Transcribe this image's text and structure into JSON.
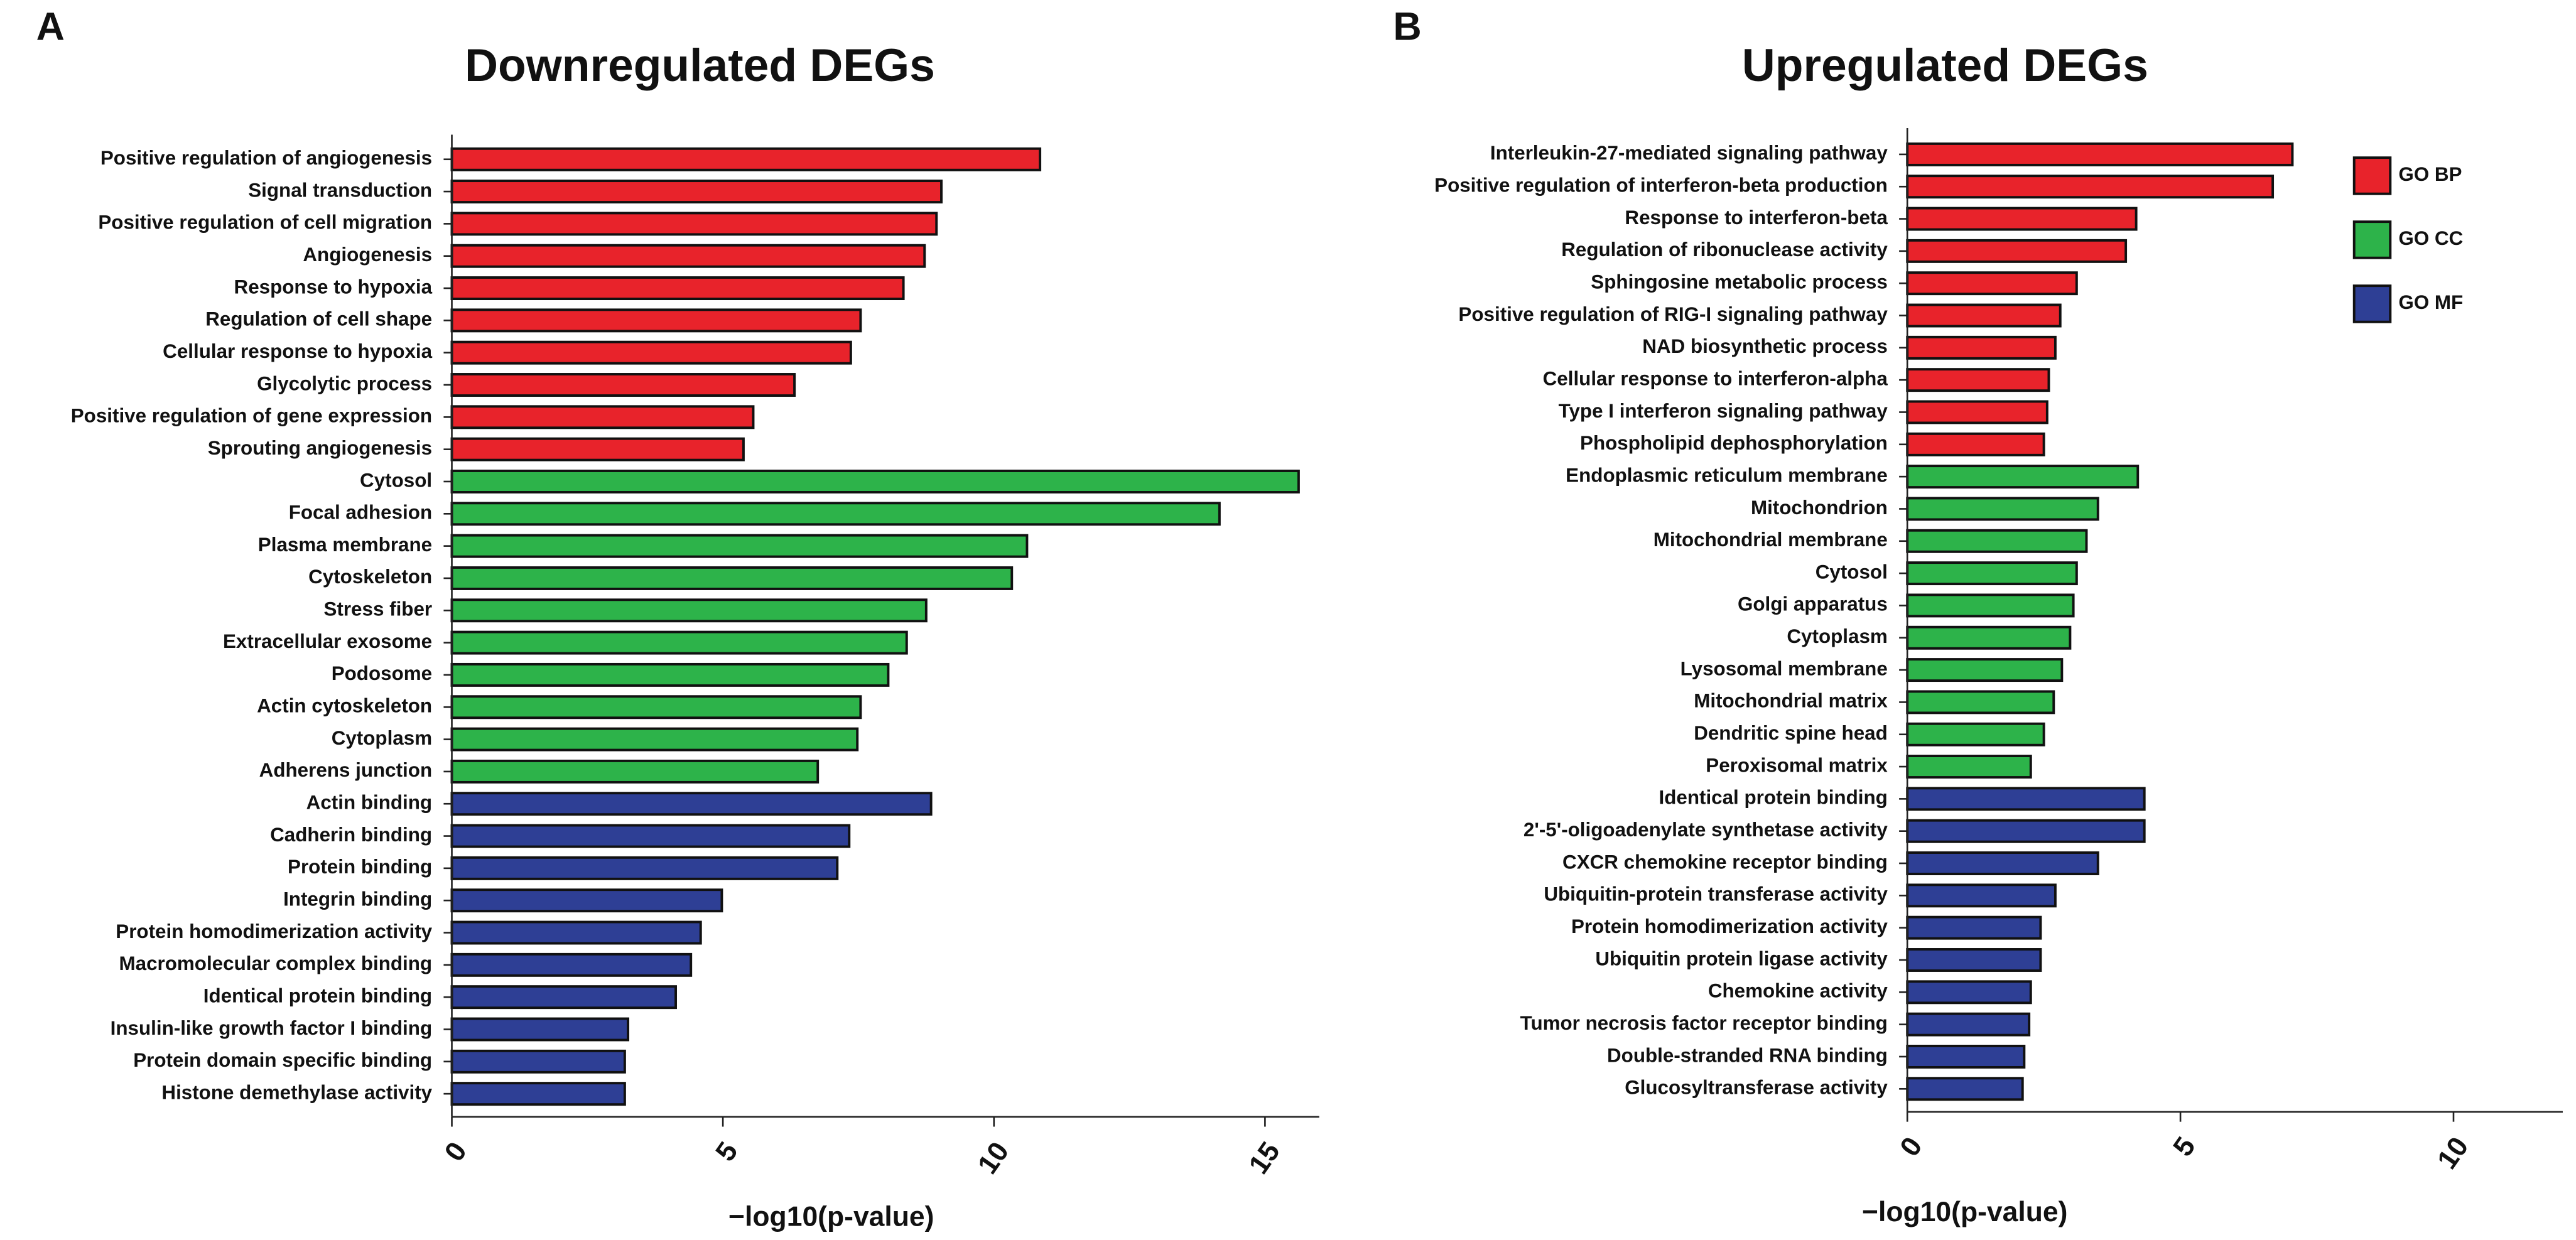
{
  "chart_data": [
    {
      "type": "barh",
      "panel": "A",
      "title": "Downregulated DEGs",
      "xlabel": "−log10(p-value)",
      "categories": [
        "Positive regulation of angiogenesis",
        "Signal transduction",
        "Positive regulation of cell migration",
        "Angiogenesis",
        "Response to hypoxia",
        "Regulation of cell shape",
        "Cellular response to hypoxia",
        "Glycolytic process",
        "Positive regulation of gene expression",
        "Sprouting angiogenesis",
        "Cytosol",
        "Focal adhesion",
        "Plasma membrane",
        "Cytoskeleton",
        "Stress fiber",
        "Extracellular exosome",
        "Podosome",
        "Actin cytoskeleton",
        "Cytoplasm",
        "Adherens junction",
        "Actin binding",
        "Cadherin binding",
        "Protein binding",
        "Integrin binding",
        "Protein homodimerization activity",
        "Macromolecular complex binding",
        "Identical protein binding",
        "Insulin-like growth factor I binding",
        "Protein domain specific binding",
        "Histone demethylase activity"
      ],
      "values": [
        10.85,
        9.03,
        8.94,
        8.72,
        8.33,
        7.54,
        7.36,
        6.32,
        5.56,
        5.38,
        15.62,
        14.16,
        10.61,
        10.33,
        8.75,
        8.39,
        8.05,
        7.54,
        7.48,
        6.75,
        8.84,
        7.33,
        7.11,
        4.98,
        4.59,
        4.41,
        4.13,
        3.25,
        3.19,
        3.19
      ],
      "colors": [
        "#e8232b",
        "#e8232b",
        "#e8232b",
        "#e8232b",
        "#e8232b",
        "#e8232b",
        "#e8232b",
        "#e8232b",
        "#e8232b",
        "#e8232b",
        "#2db34a",
        "#2db34a",
        "#2db34a",
        "#2db34a",
        "#2db34a",
        "#2db34a",
        "#2db34a",
        "#2db34a",
        "#2db34a",
        "#2db34a",
        "#2e3f95",
        "#2e3f95",
        "#2e3f95",
        "#2e3f95",
        "#2e3f95",
        "#2e3f95",
        "#2e3f95",
        "#2e3f95",
        "#2e3f95",
        "#2e3f95"
      ],
      "xlim": [
        0,
        16
      ],
      "xticks": [
        0,
        5,
        10,
        15
      ]
    },
    {
      "type": "barh",
      "panel": "B",
      "title": "Upregulated DEGs",
      "xlabel": "−log10(p-value)",
      "categories": [
        "Interleukin-27-mediated signaling pathway",
        "Positive regulation of interferon-beta production",
        "Response to interferon-beta",
        "Regulation of ribonuclease activity",
        "Sphingosine metabolic process",
        "Positive regulation of RIG-I signaling pathway",
        "NAD biosynthetic process",
        "Cellular response to interferon-alpha",
        "Type I interferon signaling pathway",
        "Phospholipid dephosphorylation",
        "Endoplasmic reticulum membrane",
        "Mitochondrion",
        "Mitochondrial membrane",
        "Cytosol",
        "Golgi apparatus",
        "Cytoplasm",
        "Lysosomal membrane",
        "Mitochondrial matrix",
        "Dendritic spine head",
        "Peroxisomal matrix",
        "Identical protein binding",
        "2'-5'-oligoadenylate synthetase activity",
        "CXCR chemokine receptor binding",
        "Ubiquitin-protein transferase activity",
        "Protein homodimerization activity",
        "Ubiquitin protein ligase activity",
        "Chemokine activity",
        "Tumor necrosis factor receptor binding",
        "Double-stranded RNA binding",
        "Glucosyltransferase activity"
      ],
      "values": [
        7.05,
        6.69,
        4.19,
        4.0,
        3.1,
        2.8,
        2.71,
        2.59,
        2.56,
        2.5,
        4.22,
        3.49,
        3.28,
        3.1,
        3.04,
        2.98,
        2.83,
        2.68,
        2.5,
        2.26,
        4.34,
        4.34,
        3.49,
        2.71,
        2.44,
        2.44,
        2.26,
        2.23,
        2.14,
        2.11
      ],
      "colors": [
        "#e8232b",
        "#e8232b",
        "#e8232b",
        "#e8232b",
        "#e8232b",
        "#e8232b",
        "#e8232b",
        "#e8232b",
        "#e8232b",
        "#e8232b",
        "#2db34a",
        "#2db34a",
        "#2db34a",
        "#2db34a",
        "#2db34a",
        "#2db34a",
        "#2db34a",
        "#2db34a",
        "#2db34a",
        "#2db34a",
        "#2e3f95",
        "#2e3f95",
        "#2e3f95",
        "#2e3f95",
        "#2e3f95",
        "#2e3f95",
        "#2e3f95",
        "#2e3f95",
        "#2e3f95",
        "#2e3f95"
      ],
      "xlim": [
        0,
        12
      ],
      "xticks": [
        0,
        5,
        10
      ],
      "legend": [
        {
          "name": "GO BP",
          "color": "#e8232b"
        },
        {
          "name": "GO CC",
          "color": "#2db34a"
        },
        {
          "name": "GO MF",
          "color": "#2e3f95"
        }
      ],
      "legend_position": "upper right"
    }
  ]
}
